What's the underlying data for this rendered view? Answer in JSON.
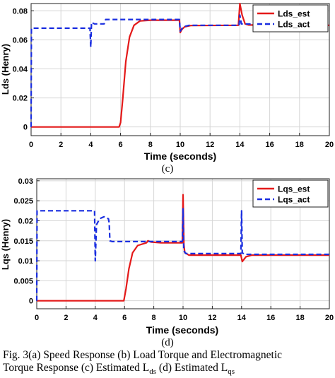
{
  "chart_data": [
    {
      "type": "line",
      "panel_label": "(c)",
      "xlabel": "Time (seconds)",
      "ylabel": "Lds (Henry)",
      "xlim": [
        0,
        20
      ],
      "ylim": [
        -0.006,
        0.085
      ],
      "xticks": [
        "0",
        "2",
        "4",
        "6",
        "8",
        "10",
        "12",
        "14",
        "16",
        "18",
        "20"
      ],
      "yticks": [
        "0",
        "0.02",
        "0.04",
        "0.06",
        "0.08"
      ],
      "grid": true,
      "legend_position": "top-right",
      "series": [
        {
          "name": "Lds_est",
          "color": "#e41a1a",
          "style": "solid",
          "points": [
            [
              0,
              0
            ],
            [
              5.9,
              0
            ],
            [
              6.0,
              0.003
            ],
            [
              6.15,
              0.02
            ],
            [
              6.35,
              0.045
            ],
            [
              6.6,
              0.062
            ],
            [
              6.9,
              0.07
            ],
            [
              7.3,
              0.073
            ],
            [
              8,
              0.0735
            ],
            [
              9.95,
              0.0735
            ],
            [
              10.0,
              0.065
            ],
            [
              10.1,
              0.067
            ],
            [
              10.3,
              0.069
            ],
            [
              10.7,
              0.0698
            ],
            [
              13.9,
              0.07
            ],
            [
              14.0,
              0.085
            ],
            [
              14.15,
              0.077
            ],
            [
              14.35,
              0.071
            ],
            [
              14.6,
              0.0702
            ],
            [
              20,
              0.07
            ]
          ]
        },
        {
          "name": "Lds_act",
          "color": "#1a2ee0",
          "style": "dashed",
          "points": [
            [
              0,
              0
            ],
            [
              0.02,
              0.068
            ],
            [
              3.95,
              0.068
            ],
            [
              4.0,
              0.055
            ],
            [
              4.05,
              0.072
            ],
            [
              4.25,
              0.071
            ],
            [
              4.9,
              0.071
            ],
            [
              5.0,
              0.074
            ],
            [
              9.95,
              0.074
            ],
            [
              10.0,
              0.066
            ],
            [
              10.2,
              0.069
            ],
            [
              10.6,
              0.07
            ],
            [
              13.95,
              0.07
            ],
            [
              14.0,
              0.077
            ],
            [
              14.1,
              0.071
            ],
            [
              20,
              0.07
            ]
          ]
        }
      ]
    },
    {
      "type": "line",
      "panel_label": "(d)",
      "xlabel": "Time (seconds)",
      "ylabel": "Lqs (Henry)",
      "xlim": [
        0,
        20
      ],
      "ylim": [
        -0.002,
        0.0305
      ],
      "xticks": [
        "0",
        "2",
        "4",
        "6",
        "8",
        "10",
        "12",
        "14",
        "16",
        "18",
        "20"
      ],
      "yticks": [
        "0",
        "0.005",
        "0.01",
        "0.015",
        "0.02",
        "0.025",
        "0.03"
      ],
      "grid": true,
      "legend_position": "top-right",
      "series": [
        {
          "name": "Lqs_est",
          "color": "#e41a1a",
          "style": "solid",
          "points": [
            [
              0,
              0
            ],
            [
              5.95,
              0
            ],
            [
              6.1,
              0.003
            ],
            [
              6.3,
              0.008
            ],
            [
              6.55,
              0.012
            ],
            [
              6.9,
              0.0138
            ],
            [
              7.5,
              0.0145
            ],
            [
              7.6,
              0.015
            ],
            [
              7.8,
              0.0147
            ],
            [
              8.5,
              0.0145
            ],
            [
              9.95,
              0.0145
            ],
            [
              10.0,
              0.0265
            ],
            [
              10.06,
              0.014
            ],
            [
              10.12,
              0.012
            ],
            [
              10.4,
              0.0114
            ],
            [
              13.95,
              0.0114
            ],
            [
              14.05,
              0.0098
            ],
            [
              14.3,
              0.011
            ],
            [
              14.7,
              0.0114
            ],
            [
              20,
              0.0114
            ]
          ]
        },
        {
          "name": "Lqs_act",
          "color": "#1a2ee0",
          "style": "dashed",
          "points": [
            [
              0,
              0
            ],
            [
              0.02,
              0.0225
            ],
            [
              3.95,
              0.0225
            ],
            [
              4.0,
              0.01
            ],
            [
              4.08,
              0.019
            ],
            [
              4.3,
              0.0205
            ],
            [
              4.6,
              0.021
            ],
            [
              4.9,
              0.0205
            ],
            [
              4.95,
              0.0195
            ],
            [
              5.0,
              0.015
            ],
            [
              5.15,
              0.0148
            ],
            [
              9.95,
              0.0148
            ],
            [
              10.0,
              0.023
            ],
            [
              10.05,
              0.0125
            ],
            [
              10.2,
              0.0118
            ],
            [
              13.95,
              0.0118
            ],
            [
              14.0,
              0.0225
            ],
            [
              14.05,
              0.012
            ],
            [
              14.2,
              0.0116
            ],
            [
              20,
              0.0116
            ]
          ]
        }
      ]
    }
  ],
  "captions": {
    "panel_c": "(c)",
    "panel_d": "(d)",
    "line1": "Fig. 3(a) Speed Response (b) Load Torque and Electromagnetic",
    "line2_prefix": "Torque Response (c) Estimated L",
    "line2_sub1": "ds",
    "line2_mid": " (d) Estimated L",
    "line2_sub2": "qs"
  }
}
